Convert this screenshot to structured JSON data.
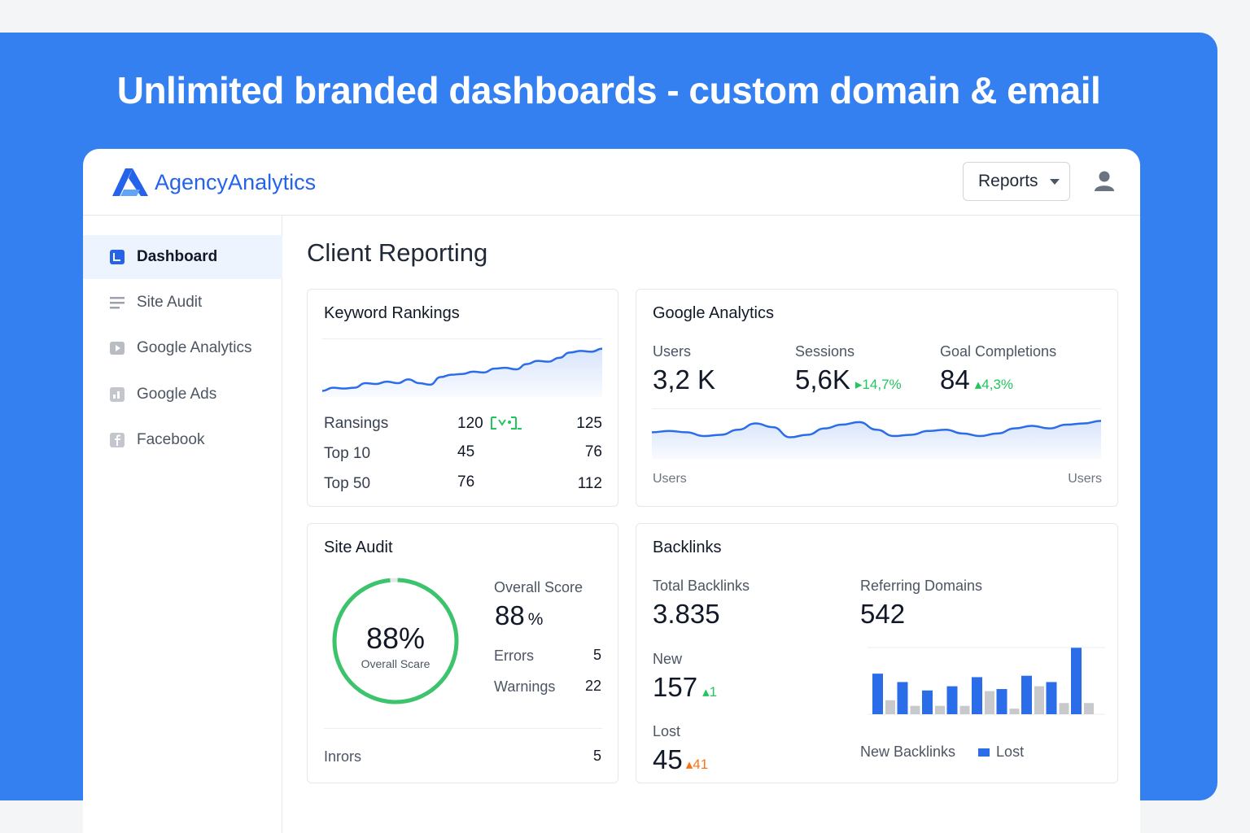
{
  "hero": {
    "title": "Unlimited branded dashboards - custom domain & email"
  },
  "header": {
    "brand": "AgencyAnalytics",
    "reports_label": "Reports",
    "icons": {
      "logo": "agencyanalytics-logo-icon",
      "caret": "chevron-down-icon",
      "user": "user-avatar-icon"
    }
  },
  "sidebar": {
    "items": [
      {
        "label": "Dashboard",
        "icon": "dashboard-icon",
        "active": true
      },
      {
        "label": "Site Audit",
        "icon": "list-icon",
        "active": false
      },
      {
        "label": "Google Analytics",
        "icon": "play-icon",
        "active": false
      },
      {
        "label": "Google Ads",
        "icon": "ads-icon",
        "active": false
      },
      {
        "label": "Facebook",
        "icon": "facebook-icon",
        "active": false
      }
    ]
  },
  "main": {
    "title": "Client Reporting",
    "keyword_rankings": {
      "title": "Keyword Rankings",
      "rows": [
        {
          "label": "Ransings",
          "col1": "120",
          "col2": "125"
        },
        {
          "label": "Top 10",
          "col1": "45",
          "col2": "76"
        },
        {
          "label": "Top 50",
          "col1": "76",
          "col2": "112"
        }
      ]
    },
    "google_analytics": {
      "title": "Google Analytics",
      "users_label": "Users",
      "users_value": "3,2 K",
      "sessions_label": "Sessions",
      "sessions_value": "5,6K",
      "sessions_delta": "14,7%",
      "goals_label": "Goal Completions",
      "goals_value": "84",
      "goals_delta": "4,3%",
      "axis_left": "Users",
      "axis_right": "Users"
    },
    "site_audit": {
      "title": "Site Audit",
      "ring_value": "88%",
      "ring_label": "Overall Scare",
      "ring_percent": 88,
      "overall_label": "Overall Score",
      "overall_value": "88",
      "overall_unit": "%",
      "errors_label": "Errors",
      "errors_value": "5",
      "warnings_label": "Warnings",
      "warnings_value": "22",
      "footer_label": "Inrors",
      "footer_value": "5"
    },
    "backlinks": {
      "title": "Backlinks",
      "total_label": "Total Backlinks",
      "total_value": "3.835",
      "referring_label": "Referring Domains",
      "referring_value": "542",
      "new_label": "New",
      "new_value": "157",
      "new_delta": "1",
      "lost_label": "Lost",
      "lost_value": "45",
      "lost_delta": "41",
      "legend_new": "New  Backlinks",
      "legend_lost": "Lost"
    }
  },
  "colors": {
    "hero_blue": "#3580f0",
    "brand_blue": "#2563eb",
    "bar_blue": "#2b6de9",
    "bar_gray": "#c8c9cc",
    "ring_green": "#3cc46c",
    "delta_green": "#22c55e",
    "delta_orange": "#f97316"
  },
  "chart_data": [
    {
      "type": "area",
      "name": "keyword-rankings-trend",
      "y": [
        8,
        12,
        11,
        12,
        18,
        17,
        20,
        18,
        23,
        18,
        16,
        26,
        29,
        30,
        33,
        32,
        37,
        38,
        36,
        43,
        47,
        46,
        51,
        58,
        60,
        59,
        63
      ]
    },
    {
      "type": "area",
      "name": "google-analytics-users",
      "y": [
        21,
        22,
        21,
        18,
        19,
        23,
        28,
        25,
        17,
        19,
        24,
        27,
        29,
        23,
        18,
        19,
        22,
        23,
        20,
        18,
        20,
        24,
        26,
        24,
        27,
        28,
        30
      ]
    },
    {
      "type": "bar",
      "name": "backlinks-bars",
      "series": [
        {
          "name": "New  Backlinks",
          "values": [
            58,
            46,
            34,
            40,
            53,
            36,
            55,
            46,
            95
          ]
        },
        {
          "name": "Lost",
          "values": [
            20,
            12,
            12,
            12,
            33,
            8,
            40,
            16,
            16
          ]
        }
      ]
    }
  ]
}
